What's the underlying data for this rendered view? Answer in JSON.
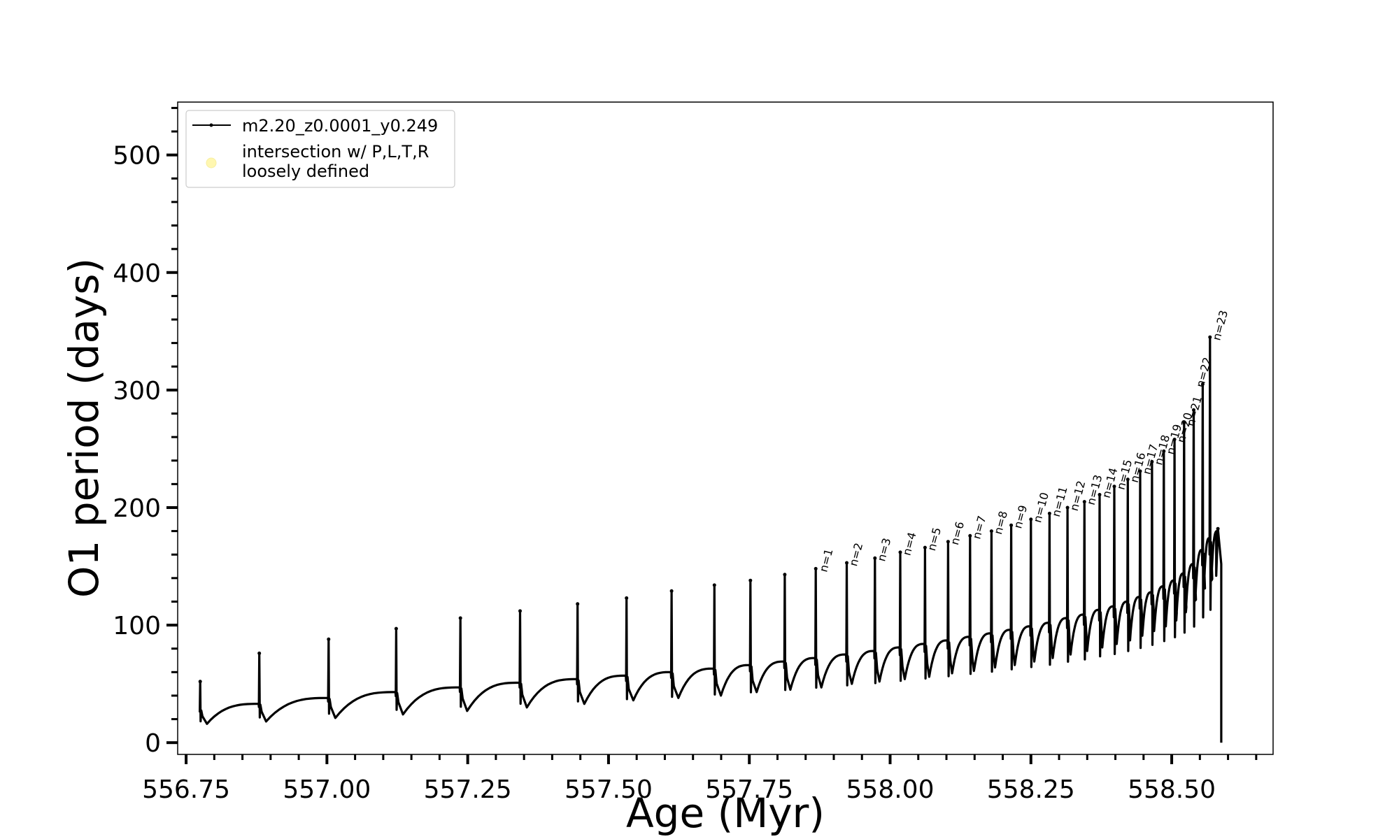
{
  "chart_data": {
    "type": "line",
    "xlabel": "Age (Myr)",
    "ylabel": "O1 period (days)",
    "xlim": [
      556.735,
      558.68
    ],
    "ylim": [
      -10,
      545
    ],
    "x_ticks": [
      556.75,
      557.0,
      557.25,
      557.5,
      557.75,
      558.0,
      558.25,
      558.5
    ],
    "x_tick_labels": [
      "556.75",
      "557.00",
      "557.25",
      "557.50",
      "557.75",
      "558.00",
      "558.25",
      "558.50"
    ],
    "y_ticks": [
      0,
      100,
      200,
      300,
      400,
      500
    ],
    "y_tick_labels": [
      "0",
      "100",
      "200",
      "300",
      "400",
      "500"
    ],
    "legend_position": "top-left",
    "legend": [
      {
        "label": "m2.20_z0.0001_y0.249",
        "marker": "line-dot",
        "color": "#000000"
      },
      {
        "label": "intersection w/ P,L,T,R\nloosely defined",
        "marker": "circle",
        "color": "#fff7b0"
      }
    ],
    "series": [
      {
        "name": "m2.20_z0.0001_y0.249",
        "color": "#000000",
        "description_of_points": "each pulse: [age, peak period, dip minimum, baseline before next pulse]",
        "pulses": [
          [
            556.775,
            52,
            16,
            33
          ],
          [
            556.88,
            76,
            18,
            38
          ],
          [
            557.003,
            88,
            21,
            43
          ],
          [
            557.123,
            97,
            24,
            47
          ],
          [
            557.237,
            106,
            27,
            51
          ],
          [
            557.343,
            112,
            30,
            54
          ],
          [
            557.445,
            118,
            33,
            57
          ],
          [
            557.532,
            123,
            36,
            60
          ],
          [
            557.612,
            129,
            38,
            63
          ],
          [
            557.688,
            134,
            40,
            66
          ],
          [
            557.752,
            138,
            43,
            69
          ],
          [
            557.813,
            143,
            45,
            72
          ],
          [
            557.868,
            148,
            47,
            75
          ],
          [
            557.923,
            153,
            50,
            78
          ],
          [
            557.973,
            157,
            52,
            81
          ],
          [
            558.018,
            162,
            54,
            84
          ],
          [
            558.062,
            166,
            56,
            87
          ],
          [
            558.103,
            171,
            59,
            90
          ],
          [
            558.142,
            176,
            61,
            93
          ],
          [
            558.18,
            180,
            64,
            96
          ],
          [
            558.215,
            185,
            66,
            99
          ],
          [
            558.25,
            190,
            69,
            102
          ],
          [
            558.283,
            195,
            72,
            106
          ],
          [
            558.315,
            200,
            75,
            109
          ],
          [
            558.345,
            205,
            78,
            113
          ],
          [
            558.372,
            211,
            81,
            116
          ],
          [
            558.398,
            218,
            84,
            120
          ],
          [
            558.422,
            224,
            87,
            124
          ],
          [
            558.444,
            231,
            91,
            128
          ],
          [
            558.465,
            239,
            95,
            133
          ],
          [
            558.486,
            248,
            99,
            138
          ],
          [
            558.505,
            258,
            104,
            144
          ],
          [
            558.522,
            272,
            111,
            152
          ],
          [
            558.539,
            283,
            121,
            164
          ],
          [
            558.555,
            305,
            131,
            174
          ],
          [
            558.568,
            345,
            138,
            180
          ],
          [
            558.582,
            182,
            0,
            0
          ]
        ]
      }
    ],
    "annotations": [
      {
        "text": "n=1",
        "x": 557.88,
        "y": 147
      },
      {
        "text": "n=2",
        "x": 557.933,
        "y": 152
      },
      {
        "text": "n=3",
        "x": 557.983,
        "y": 156
      },
      {
        "text": "n=4",
        "x": 558.028,
        "y": 161
      },
      {
        "text": "n=5",
        "x": 558.072,
        "y": 165
      },
      {
        "text": "n=6",
        "x": 558.113,
        "y": 170
      },
      {
        "text": "n=7",
        "x": 558.152,
        "y": 175
      },
      {
        "text": "n=8",
        "x": 558.19,
        "y": 179
      },
      {
        "text": "n=9",
        "x": 558.225,
        "y": 184
      },
      {
        "text": "n=10",
        "x": 558.26,
        "y": 189
      },
      {
        "text": "n=11",
        "x": 558.293,
        "y": 194
      },
      {
        "text": "n=12",
        "x": 558.325,
        "y": 199
      },
      {
        "text": "n=13",
        "x": 558.355,
        "y": 204
      },
      {
        "text": "n=14",
        "x": 558.382,
        "y": 210
      },
      {
        "text": "n=15",
        "x": 558.408,
        "y": 217
      },
      {
        "text": "n=16",
        "x": 558.432,
        "y": 223
      },
      {
        "text": "n=17",
        "x": 558.454,
        "y": 230
      },
      {
        "text": "n=18",
        "x": 558.475,
        "y": 238
      },
      {
        "text": "n=19",
        "x": 558.496,
        "y": 247
      },
      {
        "text": "n=20",
        "x": 558.515,
        "y": 257
      },
      {
        "text": "n=21",
        "x": 558.532,
        "y": 271
      },
      {
        "text": "n=22",
        "x": 558.549,
        "y": 304
      },
      {
        "text": "n=23",
        "x": 558.578,
        "y": 344
      }
    ]
  }
}
